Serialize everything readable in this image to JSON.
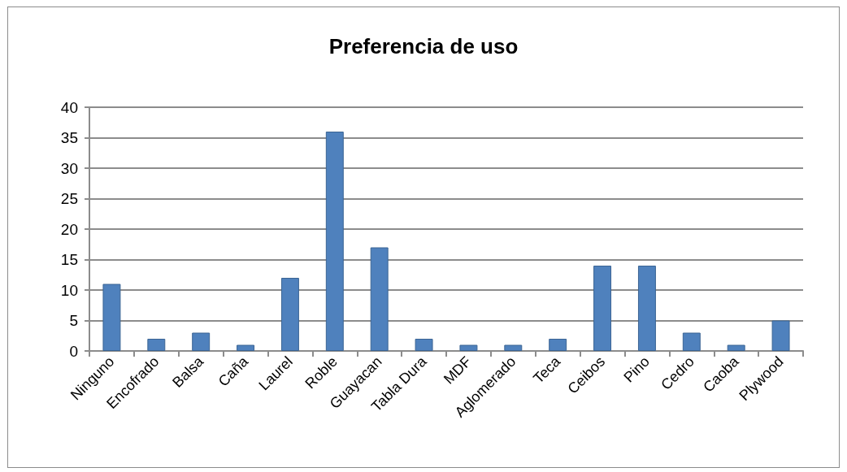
{
  "chart_data": {
    "type": "bar",
    "title": "Preferencia de uso",
    "categories": [
      "Ninguno",
      "Encofrado",
      "Balsa",
      "Caña",
      "Laurel",
      "Roble",
      "Guayacan",
      "Tabla Dura",
      "MDF",
      "Aglomerado",
      "Teca",
      "Ceibos",
      "Pino",
      "Cedro",
      "Caoba",
      "Plywood"
    ],
    "values": [
      11,
      2,
      3,
      1,
      12,
      36,
      17,
      2,
      1,
      1,
      2,
      14,
      14,
      3,
      1,
      5
    ],
    "color": "#4f81bd",
    "ylim": [
      0,
      40
    ],
    "yticks": [
      0,
      5,
      10,
      15,
      20,
      25,
      30,
      35,
      40
    ],
    "grid": "y"
  }
}
